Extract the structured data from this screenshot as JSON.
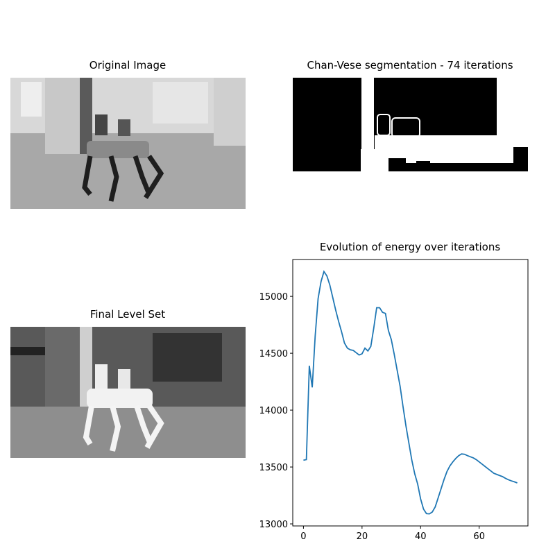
{
  "chart_data": [
    {
      "type": "image",
      "title": "Original Image"
    },
    {
      "type": "image",
      "title": "Chan-Vese segmentation - 74 iterations"
    },
    {
      "type": "image",
      "title": "Final Level Set"
    },
    {
      "type": "line",
      "title": "Evolution of energy over iterations",
      "x": [
        0,
        1,
        2,
        3,
        4,
        5,
        6,
        7,
        8,
        9,
        10,
        11,
        12,
        13,
        14,
        15,
        16,
        17,
        18,
        19,
        20,
        21,
        22,
        23,
        24,
        25,
        26,
        27,
        28,
        29,
        30,
        31,
        32,
        33,
        34,
        35,
        36,
        37,
        38,
        39,
        40,
        41,
        42,
        43,
        44,
        45,
        46,
        47,
        48,
        49,
        50,
        51,
        52,
        53,
        54,
        55,
        56,
        57,
        58,
        59,
        60,
        61,
        62,
        63,
        64,
        65,
        66,
        67,
        68,
        69,
        70,
        71,
        72,
        73
      ],
      "values": [
        13560,
        13565,
        14390,
        14200,
        14650,
        14980,
        15130,
        15218,
        15180,
        15100,
        14990,
        14880,
        14780,
        14690,
        14590,
        14545,
        14530,
        14525,
        14505,
        14485,
        14495,
        14545,
        14520,
        14560,
        14720,
        14900,
        14900,
        14860,
        14850,
        14700,
        14620,
        14490,
        14350,
        14210,
        14030,
        13860,
        13710,
        13560,
        13440,
        13350,
        13220,
        13130,
        13090,
        13088,
        13105,
        13150,
        13230,
        13310,
        13390,
        13460,
        13510,
        13545,
        13575,
        13600,
        13615,
        13612,
        13600,
        13590,
        13580,
        13565,
        13545,
        13525,
        13505,
        13485,
        13465,
        13445,
        13435,
        13425,
        13415,
        13400,
        13388,
        13378,
        13370,
        13360
      ],
      "color": "#1f77b4",
      "xlim": [
        -3.65,
        76.65
      ],
      "ylim": [
        12982,
        15324
      ],
      "xticks": [
        0,
        20,
        40,
        60
      ],
      "yticks": [
        13000,
        13500,
        14000,
        14500,
        15000
      ]
    }
  ]
}
